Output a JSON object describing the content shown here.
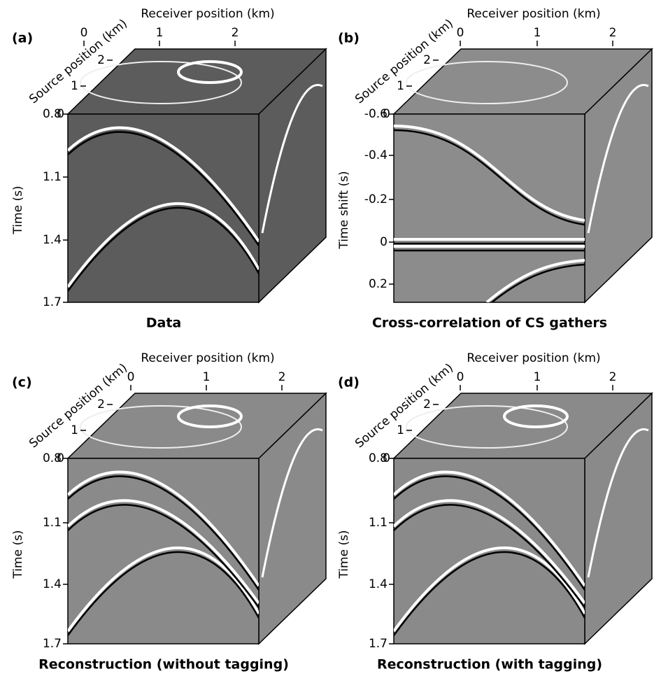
{
  "panels": [
    {
      "label": "(a)",
      "caption": "Data",
      "receiver_axis": {
        "label": "Receiver position (km)",
        "ticks": [
          "0",
          "1",
          "2"
        ]
      },
      "source_axis": {
        "label": "Source position (km)",
        "ticks": [
          "0",
          "1",
          "2"
        ]
      },
      "time_axis": {
        "label": "Time (s)",
        "ticks": [
          "0.8",
          "1.1",
          "1.4",
          "1.7"
        ]
      }
    },
    {
      "label": "(b)",
      "caption": "Cross-correlation of CS gathers",
      "receiver_axis": {
        "label": "Receiver position (km)",
        "ticks": [
          "0",
          "1",
          "2"
        ]
      },
      "source_axis": {
        "label": "Source position (km)",
        "ticks": [
          "0",
          "1",
          "2"
        ]
      },
      "time_axis": {
        "label": "Time shift (s)",
        "ticks": [
          "-0.6",
          "-0.4",
          "-0.2",
          "0",
          "0.2"
        ]
      }
    },
    {
      "label": "(c)",
      "caption": "Reconstruction (without tagging)",
      "receiver_axis": {
        "label": "Receiver position (km)",
        "ticks": [
          "0",
          "1",
          "2"
        ]
      },
      "source_axis": {
        "label": "Source position (km)",
        "ticks": [
          "0",
          "1",
          "2"
        ]
      },
      "time_axis": {
        "label": "Time (s)",
        "ticks": [
          "0.8",
          "1.1",
          "1.4",
          "1.7"
        ]
      }
    },
    {
      "label": "(d)",
      "caption": "Reconstruction (with tagging)",
      "receiver_axis": {
        "label": "Receiver position (km)",
        "ticks": [
          "0",
          "1",
          "2"
        ]
      },
      "source_axis": {
        "label": "Source position (km)",
        "ticks": [
          "0",
          "1",
          "2"
        ]
      },
      "time_axis": {
        "label": "Time (s)",
        "ticks": [
          "0.8",
          "1.1",
          "1.4",
          "1.7"
        ]
      }
    }
  ]
}
